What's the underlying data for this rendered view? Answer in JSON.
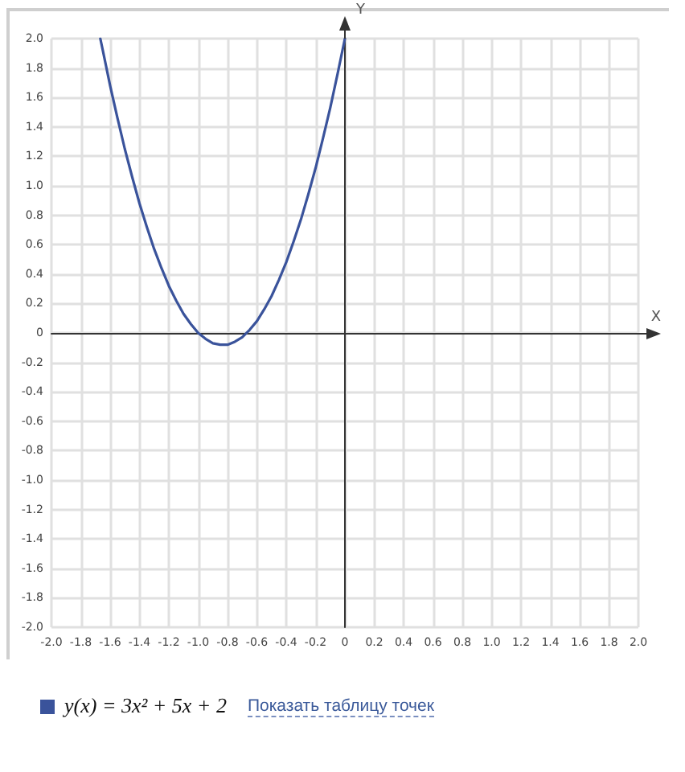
{
  "chart_data": {
    "type": "line",
    "xlabel": "X",
    "ylabel": "Y",
    "x": [
      -1.667,
      -1.65,
      -1.6,
      -1.55,
      -1.5,
      -1.45,
      -1.4,
      -1.35,
      -1.3,
      -1.25,
      -1.2,
      -1.15,
      -1.1,
      -1.05,
      -1.0,
      -0.95,
      -0.9,
      -0.85,
      -0.8,
      -0.75,
      -0.7,
      -0.65,
      -0.6,
      -0.55,
      -0.5,
      -0.45,
      -0.4,
      -0.35,
      -0.3,
      -0.25,
      -0.2,
      -0.15,
      -0.1,
      -0.05,
      0
    ],
    "series": [
      {
        "name": "y(x) = 3x² + 5x + 2",
        "color": "#3a539b",
        "values": [
          2.0,
          1.92,
          1.68,
          1.46,
          1.25,
          1.06,
          0.88,
          0.72,
          0.57,
          0.44,
          0.32,
          0.22,
          0.13,
          0.06,
          0,
          -0.04,
          -0.07,
          -0.08,
          -0.08,
          -0.06,
          -0.03,
          0.02,
          0.08,
          0.16,
          0.25,
          0.36,
          0.48,
          0.62,
          0.77,
          0.94,
          1.12,
          1.32,
          1.53,
          1.76,
          2.0
        ]
      }
    ],
    "xlim": [
      -2,
      2
    ],
    "ylim": [
      -2,
      2
    ],
    "xticks": [
      {
        "value": -2,
        "label": "-2.0"
      },
      -1.8,
      -1.6,
      -1.4,
      -1.2,
      {
        "value": -1,
        "label": "-1.0"
      },
      -0.8,
      -0.6,
      -0.4,
      -0.2,
      0,
      0.2,
      0.4,
      0.6,
      0.8,
      {
        "value": 1,
        "label": "1.0"
      },
      1.2,
      1.4,
      1.6,
      1.8,
      {
        "value": 2,
        "label": "2.0"
      }
    ],
    "yticks": [
      {
        "value": -2,
        "label": "-2.0"
      },
      -1.8,
      -1.6,
      -1.4,
      -1.2,
      {
        "value": -1,
        "label": "-1.0"
      },
      -0.8,
      -0.6,
      -0.4,
      -0.2,
      0,
      0.2,
      0.4,
      0.6,
      0.8,
      {
        "value": 1,
        "label": "1.0"
      },
      1.2,
      1.4,
      1.6,
      1.8,
      {
        "value": 2,
        "label": "2.0"
      }
    ],
    "grid": true,
    "legend": "bottom left",
    "annotations": [
      "Показать таблицу точек"
    ]
  }
}
